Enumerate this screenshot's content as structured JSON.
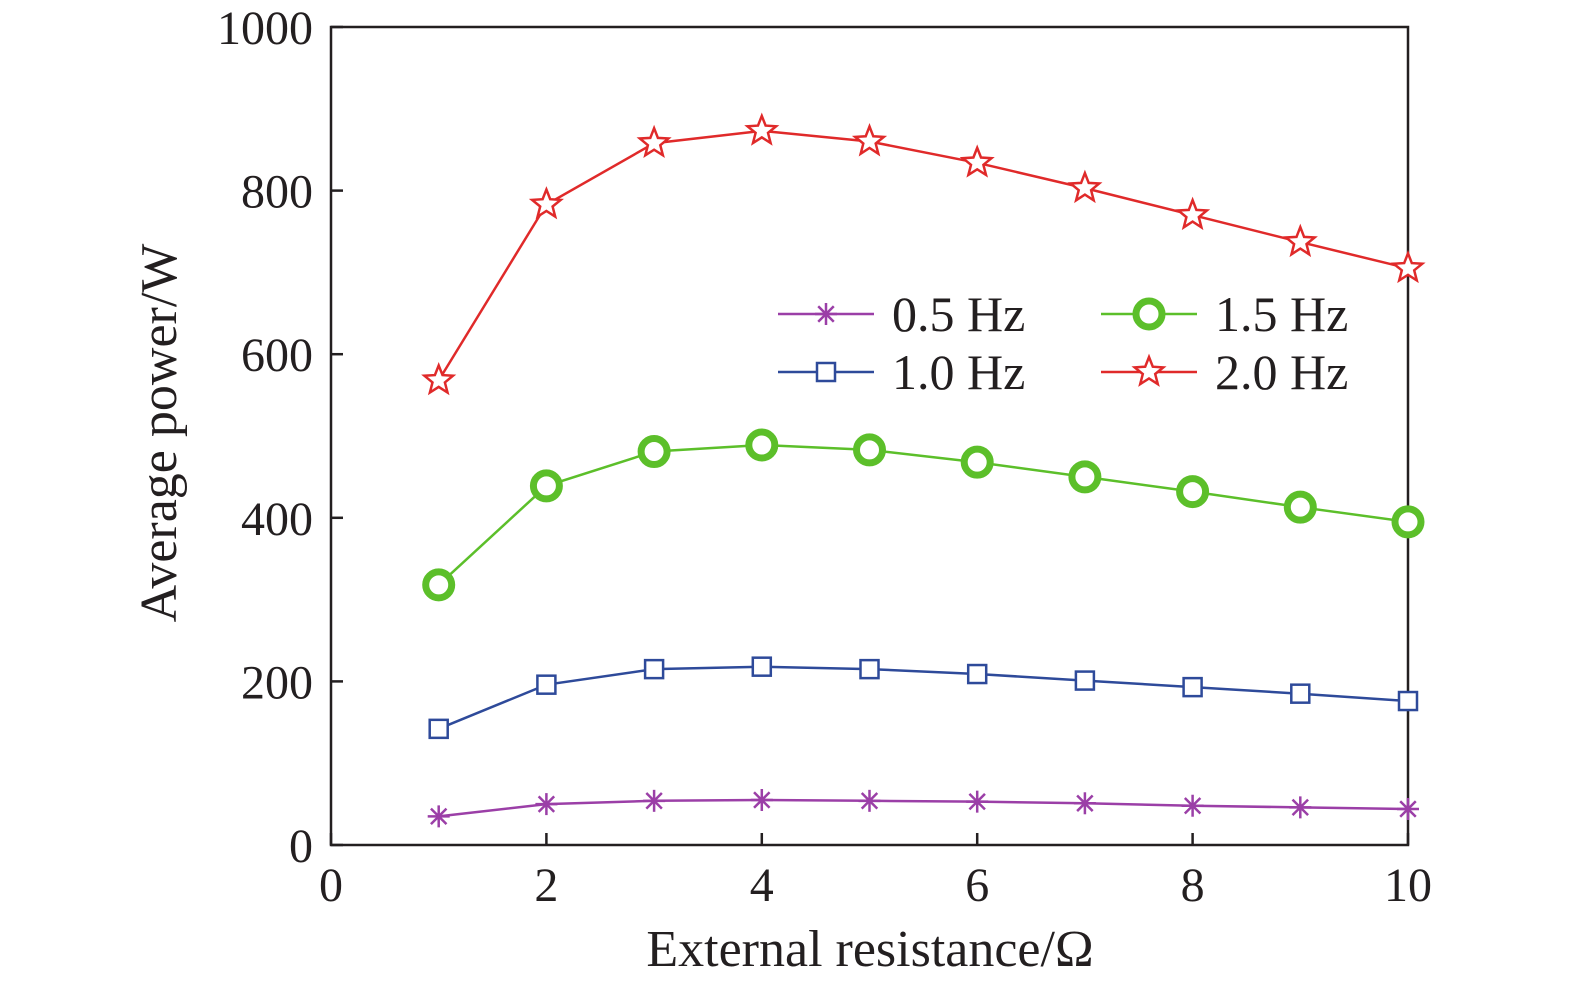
{
  "chart_data": {
    "type": "line",
    "xlabel": "External resistance/Ω",
    "ylabel": "Average power/W",
    "xlim": [
      0,
      10
    ],
    "ylim": [
      0,
      1000
    ],
    "xticks": [
      0,
      2,
      4,
      6,
      8,
      10
    ],
    "yticks": [
      0,
      200,
      400,
      600,
      800,
      1000
    ],
    "x": [
      1,
      2,
      3,
      4,
      5,
      6,
      7,
      8,
      9,
      10
    ],
    "grid": false,
    "legend_position": "center-right",
    "series": [
      {
        "name": "0.5 Hz",
        "marker": "asterisk",
        "color": "#9b3fa7",
        "values": [
          35,
          50,
          54,
          55,
          54,
          53,
          51,
          48,
          46,
          44
        ]
      },
      {
        "name": "1.0 Hz",
        "marker": "square",
        "color": "#2e4a9a",
        "values": [
          142,
          196,
          215,
          218,
          215,
          209,
          201,
          193,
          185,
          176
        ]
      },
      {
        "name": "1.5 Hz",
        "marker": "circle",
        "color": "#5cbf2a",
        "values": [
          318,
          439,
          481,
          489,
          483,
          468,
          450,
          432,
          413,
          395
        ]
      },
      {
        "name": "2.0 Hz",
        "marker": "star",
        "color": "#e02a2a",
        "values": [
          568,
          783,
          858,
          873,
          860,
          834,
          803,
          770,
          737,
          705
        ]
      }
    ]
  }
}
